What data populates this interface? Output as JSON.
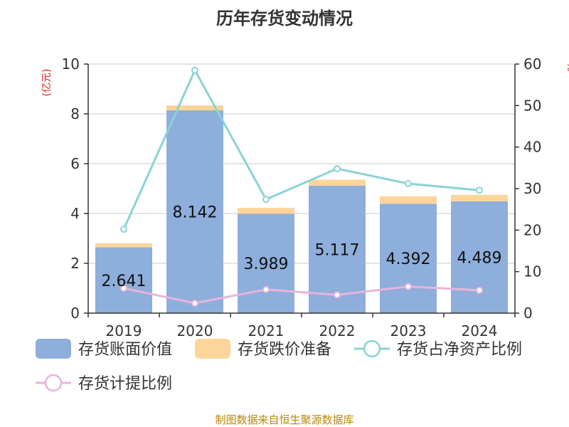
{
  "title": "历年存货变动情况",
  "source": "制图数据来自恒生聚源数据库",
  "colors": {
    "book_value": "#8eaedb",
    "impairment": "#fdd59a",
    "net_asset_ratio": "#8ad3d6",
    "provision_ratio": "#e8b4dc",
    "unit": "#e0211c",
    "source": "#b8860b"
  },
  "chart_data": {
    "type": "bar",
    "categories": [
      "2019",
      "2020",
      "2021",
      "2022",
      "2023",
      "2024"
    ],
    "y_left": {
      "label": "(亿元)",
      "range": [
        0,
        10
      ],
      "ticks": [
        "0",
        "2",
        "4",
        "6",
        "8",
        "10"
      ]
    },
    "y_right": {
      "label": "%",
      "range": [
        0,
        60
      ],
      "ticks": [
        "0",
        "10",
        "20",
        "30",
        "40",
        "50",
        "60"
      ]
    },
    "grid": true,
    "legend_position": "bottom",
    "series": [
      {
        "name": "存货账面价值",
        "kind": "bar",
        "axis": "left",
        "values": [
          2.641,
          8.142,
          3.989,
          5.117,
          4.392,
          4.489
        ],
        "labels": [
          "2.641",
          "8.142",
          "3.989",
          "5.117",
          "4.392",
          "4.489"
        ]
      },
      {
        "name": "存货跌价准备",
        "kind": "bar-stack",
        "axis": "left",
        "values": [
          0.17,
          0.2,
          0.24,
          0.24,
          0.3,
          0.26
        ]
      },
      {
        "name": "存货占净资产比例",
        "kind": "line",
        "axis": "right",
        "values": [
          20.2,
          58.5,
          27.4,
          34.8,
          31.2,
          29.6
        ]
      },
      {
        "name": "存货计提比例",
        "kind": "line",
        "axis": "right",
        "values": [
          6.0,
          2.4,
          5.7,
          4.4,
          6.4,
          5.5
        ]
      }
    ]
  }
}
